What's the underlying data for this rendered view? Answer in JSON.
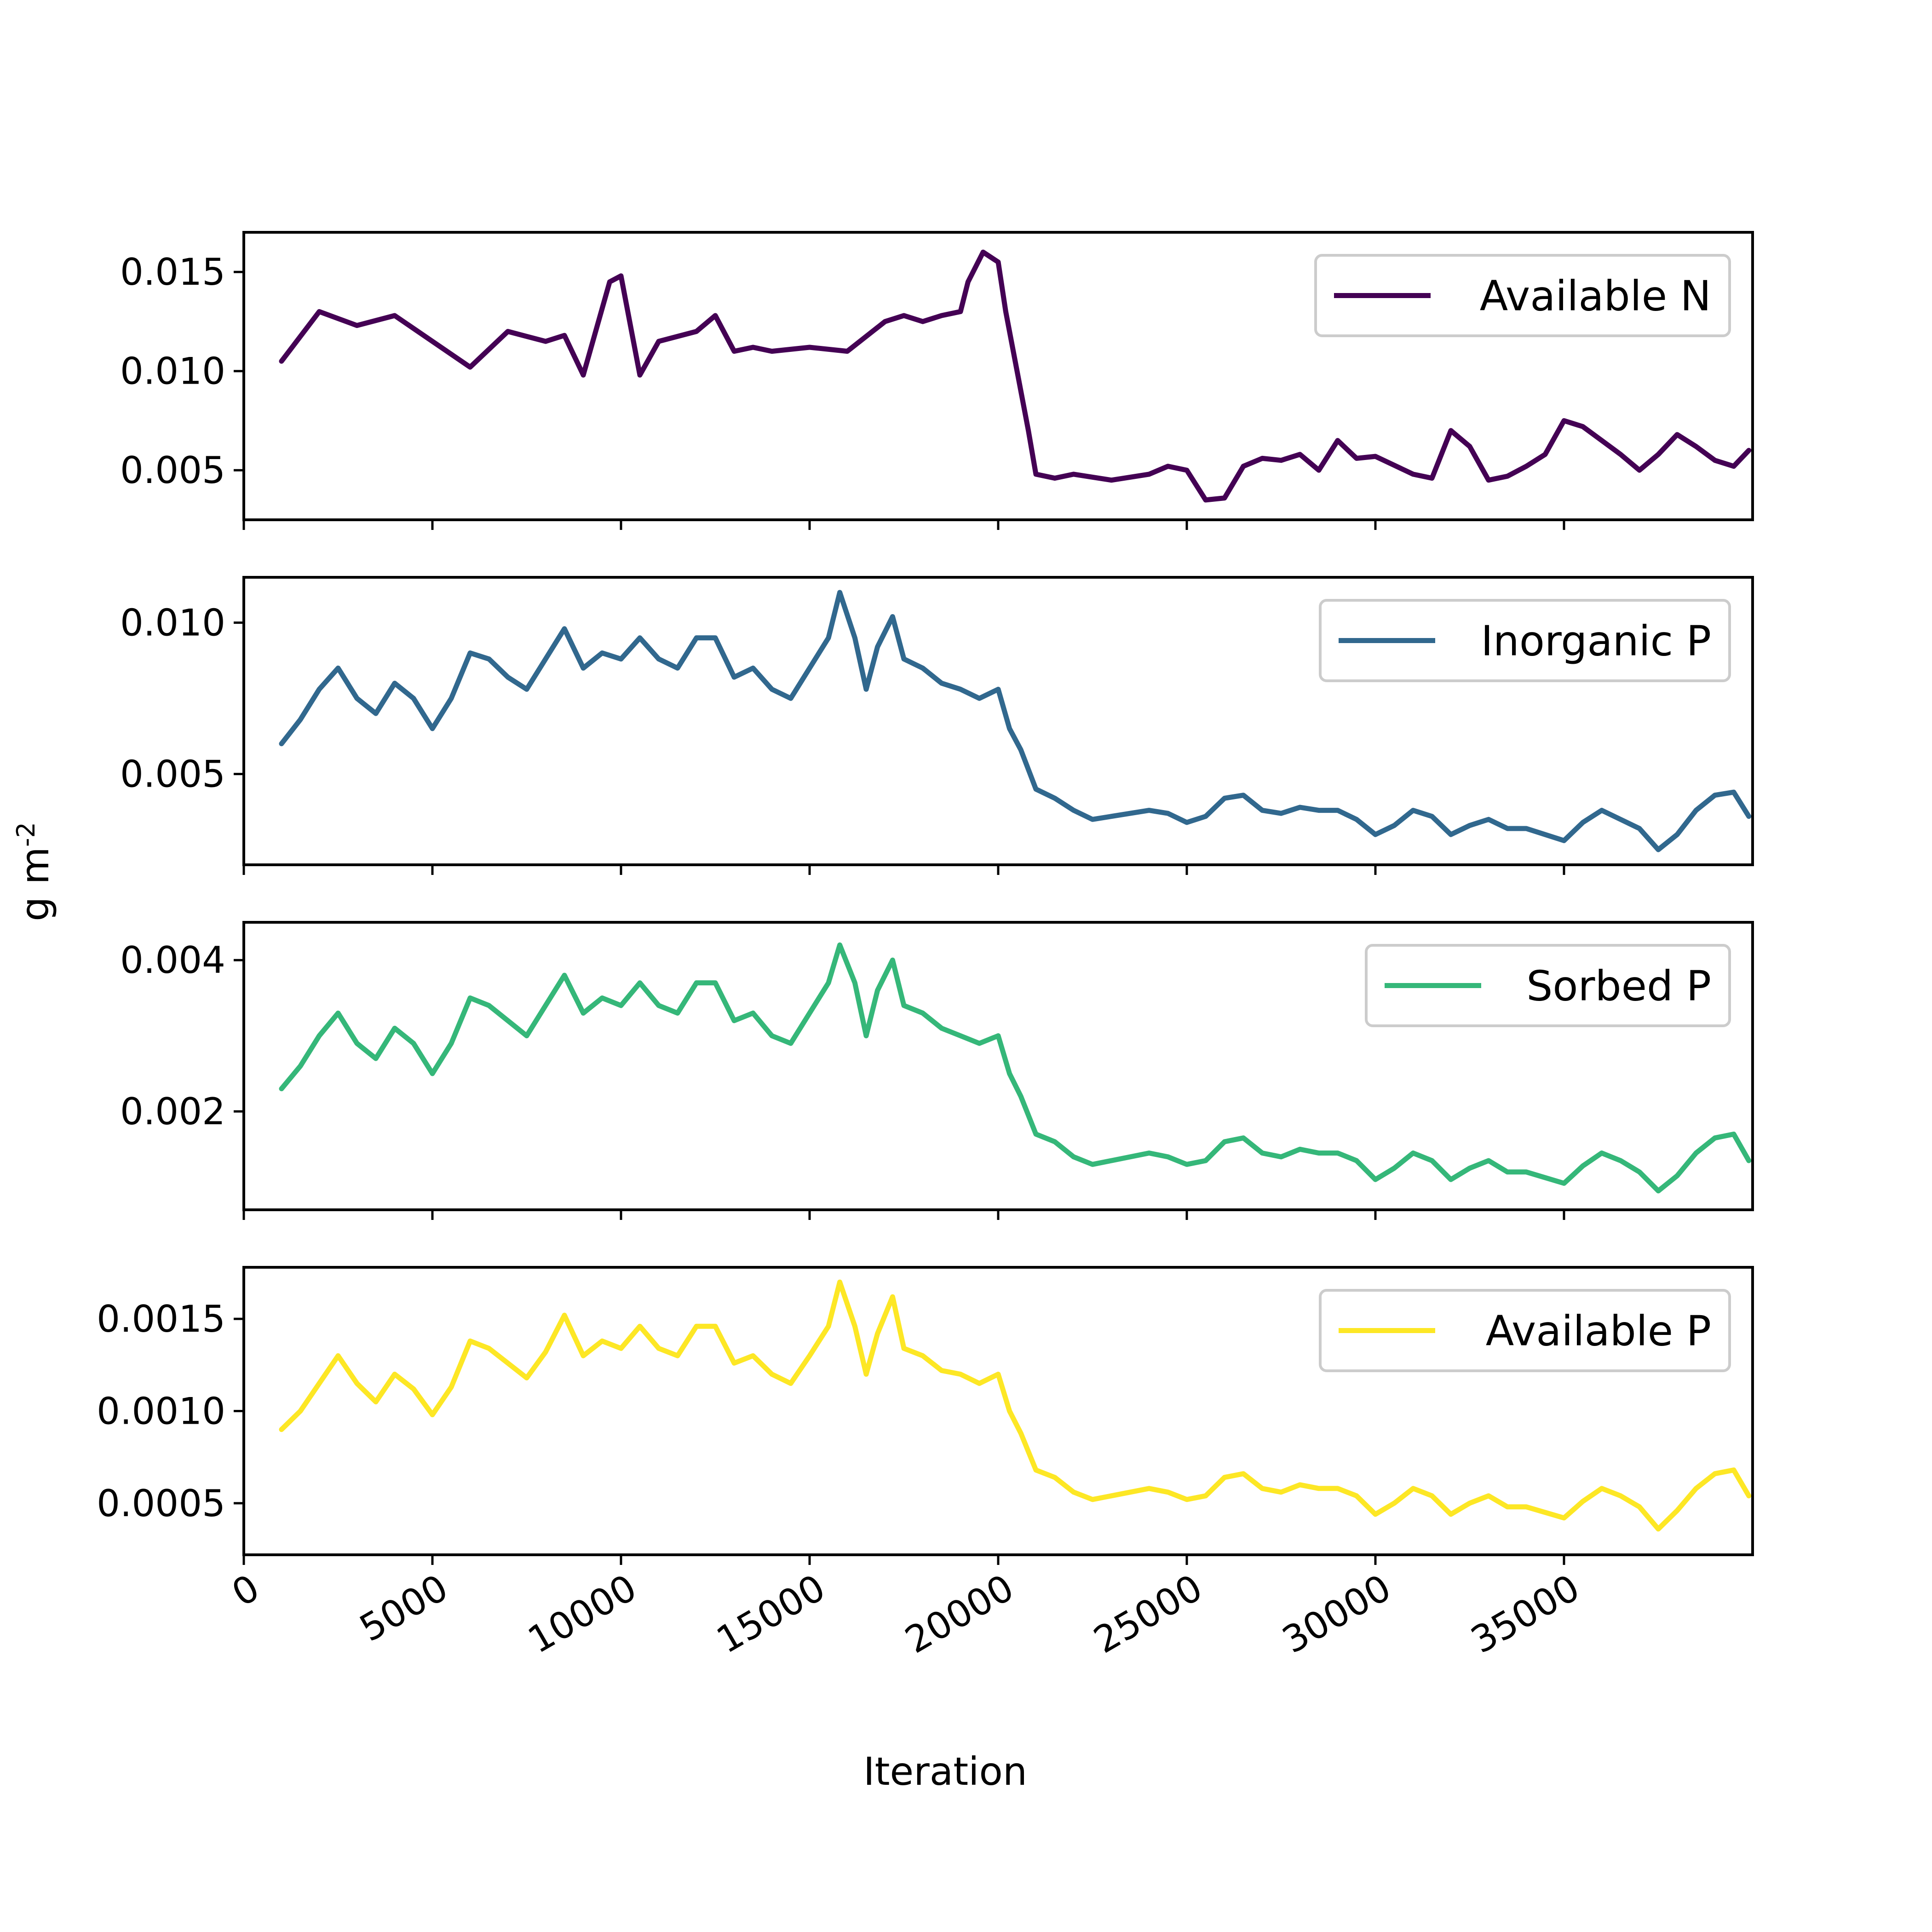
{
  "figure": {
    "xlabel": "Iteration",
    "ylabel": "g m",
    "ylabel_superscript": "-2"
  },
  "chart_data": [
    {
      "type": "line",
      "series": [
        {
          "name": "Available N",
          "color": "#440154",
          "x": [
            1000,
            2000,
            3000,
            4000,
            5000,
            6000,
            7000,
            8000,
            8500,
            9000,
            9700,
            10000,
            10500,
            11000,
            12000,
            12500,
            13000,
            13500,
            14000,
            15000,
            16000,
            17000,
            17500,
            18000,
            18500,
            19000,
            19200,
            19600,
            20000,
            20200,
            20500,
            20800,
            21000,
            21500,
            22000,
            23000,
            24000,
            24500,
            25000,
            25500,
            26000,
            26500,
            27000,
            27500,
            28000,
            28500,
            29000,
            29500,
            30000,
            31000,
            31500,
            32000,
            32500,
            33000,
            33500,
            34000,
            34500,
            35000,
            35500,
            36000,
            36500,
            37000,
            37500,
            38000,
            38500,
            39000,
            39500,
            39900
          ],
          "y": [
            0.0105,
            0.013,
            0.0123,
            0.0128,
            0.0115,
            0.0102,
            0.012,
            0.0115,
            0.0118,
            0.0098,
            0.0145,
            0.0148,
            0.0098,
            0.0115,
            0.012,
            0.0128,
            0.011,
            0.0112,
            0.011,
            0.0112,
            0.011,
            0.0125,
            0.0128,
            0.0125,
            0.0128,
            0.013,
            0.0145,
            0.016,
            0.0155,
            0.013,
            0.01,
            0.007,
            0.0048,
            0.0046,
            0.0048,
            0.0045,
            0.0048,
            0.0052,
            0.005,
            0.0035,
            0.0036,
            0.0052,
            0.0056,
            0.0055,
            0.0058,
            0.005,
            0.0065,
            0.0056,
            0.0057,
            0.0048,
            0.0046,
            0.007,
            0.0062,
            0.0045,
            0.0047,
            0.0052,
            0.0058,
            0.0075,
            0.0072,
            0.0065,
            0.0058,
            0.005,
            0.0058,
            0.0068,
            0.0062,
            0.0055,
            0.0052,
            0.006
          ],
          "yticks": [
            0.005,
            0.01,
            0.015
          ],
          "ytick_labels": [
            "0.005",
            "0.010",
            "0.015"
          ]
        }
      ],
      "ylim": [
        0.0025,
        0.017
      ],
      "xlim": [
        0,
        40000
      ],
      "legend_position": "top-right"
    },
    {
      "type": "line",
      "series": [
        {
          "name": "Inorganic P",
          "color": "#31688e",
          "x": [
            1000,
            1500,
            2000,
            2500,
            3000,
            3500,
            4000,
            4500,
            5000,
            5500,
            6000,
            6500,
            7000,
            7500,
            8000,
            8500,
            9000,
            9500,
            10000,
            10500,
            11000,
            11500,
            12000,
            12500,
            13000,
            13500,
            14000,
            14500,
            15000,
            15500,
            15800,
            16200,
            16500,
            16800,
            17200,
            17500,
            18000,
            18500,
            19000,
            19500,
            20000,
            20300,
            20600,
            21000,
            21500,
            22000,
            22500,
            23000,
            24000,
            24500,
            25000,
            25500,
            26000,
            26500,
            27000,
            27500,
            28000,
            28500,
            29000,
            29500,
            30000,
            30500,
            31000,
            31500,
            32000,
            32500,
            33000,
            33500,
            34000,
            35000,
            35500,
            36000,
            36500,
            37000,
            37500,
            38000,
            38500,
            39000,
            39500,
            39900
          ],
          "y": [
            0.006,
            0.0068,
            0.0078,
            0.0085,
            0.0075,
            0.007,
            0.008,
            0.0075,
            0.0065,
            0.0075,
            0.009,
            0.0088,
            0.0082,
            0.0078,
            0.0088,
            0.0098,
            0.0085,
            0.009,
            0.0088,
            0.0095,
            0.0088,
            0.0085,
            0.0095,
            0.0095,
            0.0082,
            0.0085,
            0.0078,
            0.0075,
            0.0085,
            0.0095,
            0.011,
            0.0095,
            0.0078,
            0.0092,
            0.0102,
            0.0088,
            0.0085,
            0.008,
            0.0078,
            0.0075,
            0.0078,
            0.0065,
            0.0058,
            0.0045,
            0.0042,
            0.0038,
            0.0035,
            0.0036,
            0.0038,
            0.0037,
            0.0034,
            0.0036,
            0.0042,
            0.0043,
            0.0038,
            0.0037,
            0.0039,
            0.0038,
            0.0038,
            0.0035,
            0.003,
            0.0033,
            0.0038,
            0.0036,
            0.003,
            0.0033,
            0.0035,
            0.0032,
            0.0032,
            0.0028,
            0.0034,
            0.0038,
            0.0035,
            0.0032,
            0.0025,
            0.003,
            0.0038,
            0.0043,
            0.0044,
            0.0036
          ],
          "yticks": [
            0.005,
            0.01
          ],
          "ytick_labels": [
            "0.005",
            "0.010"
          ]
        }
      ],
      "ylim": [
        0.002,
        0.0115
      ],
      "xlim": [
        0,
        40000
      ],
      "legend_position": "top-right"
    },
    {
      "type": "line",
      "series": [
        {
          "name": "Sorbed P",
          "color": "#35b779",
          "x": [
            1000,
            1500,
            2000,
            2500,
            3000,
            3500,
            4000,
            4500,
            5000,
            5500,
            6000,
            6500,
            7000,
            7500,
            8000,
            8500,
            9000,
            9500,
            10000,
            10500,
            11000,
            11500,
            12000,
            12500,
            13000,
            13500,
            14000,
            14500,
            15000,
            15500,
            15800,
            16200,
            16500,
            16800,
            17200,
            17500,
            18000,
            18500,
            19000,
            19500,
            20000,
            20300,
            20600,
            21000,
            21500,
            22000,
            22500,
            23000,
            24000,
            24500,
            25000,
            25500,
            26000,
            26500,
            27000,
            27500,
            28000,
            28500,
            29000,
            29500,
            30000,
            30500,
            31000,
            31500,
            32000,
            32500,
            33000,
            33500,
            34000,
            35000,
            35500,
            36000,
            36500,
            37000,
            37500,
            38000,
            38500,
            39000,
            39500,
            39900
          ],
          "y": [
            0.0023,
            0.0026,
            0.003,
            0.0033,
            0.0029,
            0.0027,
            0.0031,
            0.0029,
            0.0025,
            0.0029,
            0.0035,
            0.0034,
            0.0032,
            0.003,
            0.0034,
            0.0038,
            0.0033,
            0.0035,
            0.0034,
            0.0037,
            0.0034,
            0.0033,
            0.0037,
            0.0037,
            0.0032,
            0.0033,
            0.003,
            0.0029,
            0.0033,
            0.0037,
            0.0042,
            0.0037,
            0.003,
            0.0036,
            0.004,
            0.0034,
            0.0033,
            0.0031,
            0.003,
            0.0029,
            0.003,
            0.0025,
            0.0022,
            0.0017,
            0.0016,
            0.0014,
            0.0013,
            0.00135,
            0.00145,
            0.0014,
            0.0013,
            0.00135,
            0.0016,
            0.00165,
            0.00145,
            0.0014,
            0.0015,
            0.00145,
            0.00145,
            0.00135,
            0.0011,
            0.00125,
            0.00145,
            0.00135,
            0.0011,
            0.00125,
            0.00135,
            0.0012,
            0.0012,
            0.00105,
            0.00128,
            0.00145,
            0.00135,
            0.0012,
            0.00095,
            0.00115,
            0.00145,
            0.00165,
            0.0017,
            0.00135
          ],
          "yticks": [
            0.002,
            0.004
          ],
          "ytick_labels": [
            "0.002",
            "0.004"
          ]
        }
      ],
      "ylim": [
        0.0007,
        0.0045
      ],
      "xlim": [
        0,
        40000
      ],
      "legend_position": "top-right"
    },
    {
      "type": "line",
      "series": [
        {
          "name": "Available P",
          "color": "#fde725",
          "x": [
            1000,
            1500,
            2000,
            2500,
            3000,
            3500,
            4000,
            4500,
            5000,
            5500,
            6000,
            6500,
            7000,
            7500,
            8000,
            8500,
            9000,
            9500,
            10000,
            10500,
            11000,
            11500,
            12000,
            12500,
            13000,
            13500,
            14000,
            14500,
            15000,
            15500,
            15800,
            16200,
            16500,
            16800,
            17200,
            17500,
            18000,
            18500,
            19000,
            19500,
            20000,
            20300,
            20600,
            21000,
            21500,
            22000,
            22500,
            23000,
            24000,
            24500,
            25000,
            25500,
            26000,
            26500,
            27000,
            27500,
            28000,
            28500,
            29000,
            29500,
            30000,
            30500,
            31000,
            31500,
            32000,
            32500,
            33000,
            33500,
            34000,
            35000,
            35500,
            36000,
            36500,
            37000,
            37500,
            38000,
            38500,
            39000,
            39500,
            39900
          ],
          "y": [
            0.0009,
            0.001,
            0.00115,
            0.0013,
            0.00115,
            0.00105,
            0.0012,
            0.00112,
            0.00098,
            0.00113,
            0.00138,
            0.00134,
            0.00126,
            0.00118,
            0.00132,
            0.00152,
            0.0013,
            0.00138,
            0.00134,
            0.00146,
            0.00134,
            0.0013,
            0.00146,
            0.00146,
            0.00126,
            0.0013,
            0.0012,
            0.00115,
            0.0013,
            0.00146,
            0.0017,
            0.00146,
            0.0012,
            0.00142,
            0.00162,
            0.00134,
            0.0013,
            0.00122,
            0.0012,
            0.00115,
            0.0012,
            0.001,
            0.00088,
            0.00068,
            0.00064,
            0.00056,
            0.00052,
            0.00054,
            0.00058,
            0.00056,
            0.00052,
            0.00054,
            0.00064,
            0.00066,
            0.00058,
            0.00056,
            0.0006,
            0.00058,
            0.00058,
            0.00054,
            0.00044,
            0.0005,
            0.00058,
            0.00054,
            0.00044,
            0.0005,
            0.00054,
            0.00048,
            0.00048,
            0.00042,
            0.00051,
            0.00058,
            0.00054,
            0.00048,
            0.00036,
            0.00046,
            0.00058,
            0.00066,
            0.00068,
            0.00054
          ],
          "yticks": [
            0.0005,
            0.001,
            0.0015
          ],
          "ytick_labels": [
            "0.0005",
            "0.0010",
            "0.0015"
          ]
        }
      ],
      "ylim": [
        0.00022,
        0.00178
      ],
      "xlim": [
        0,
        40000
      ],
      "legend_position": "top-right",
      "xticks": [
        0,
        5000,
        10000,
        15000,
        20000,
        25000,
        30000,
        35000
      ],
      "xtick_labels": [
        "0",
        "5000",
        "10000",
        "15000",
        "20000",
        "25000",
        "30000",
        "35000"
      ]
    }
  ]
}
